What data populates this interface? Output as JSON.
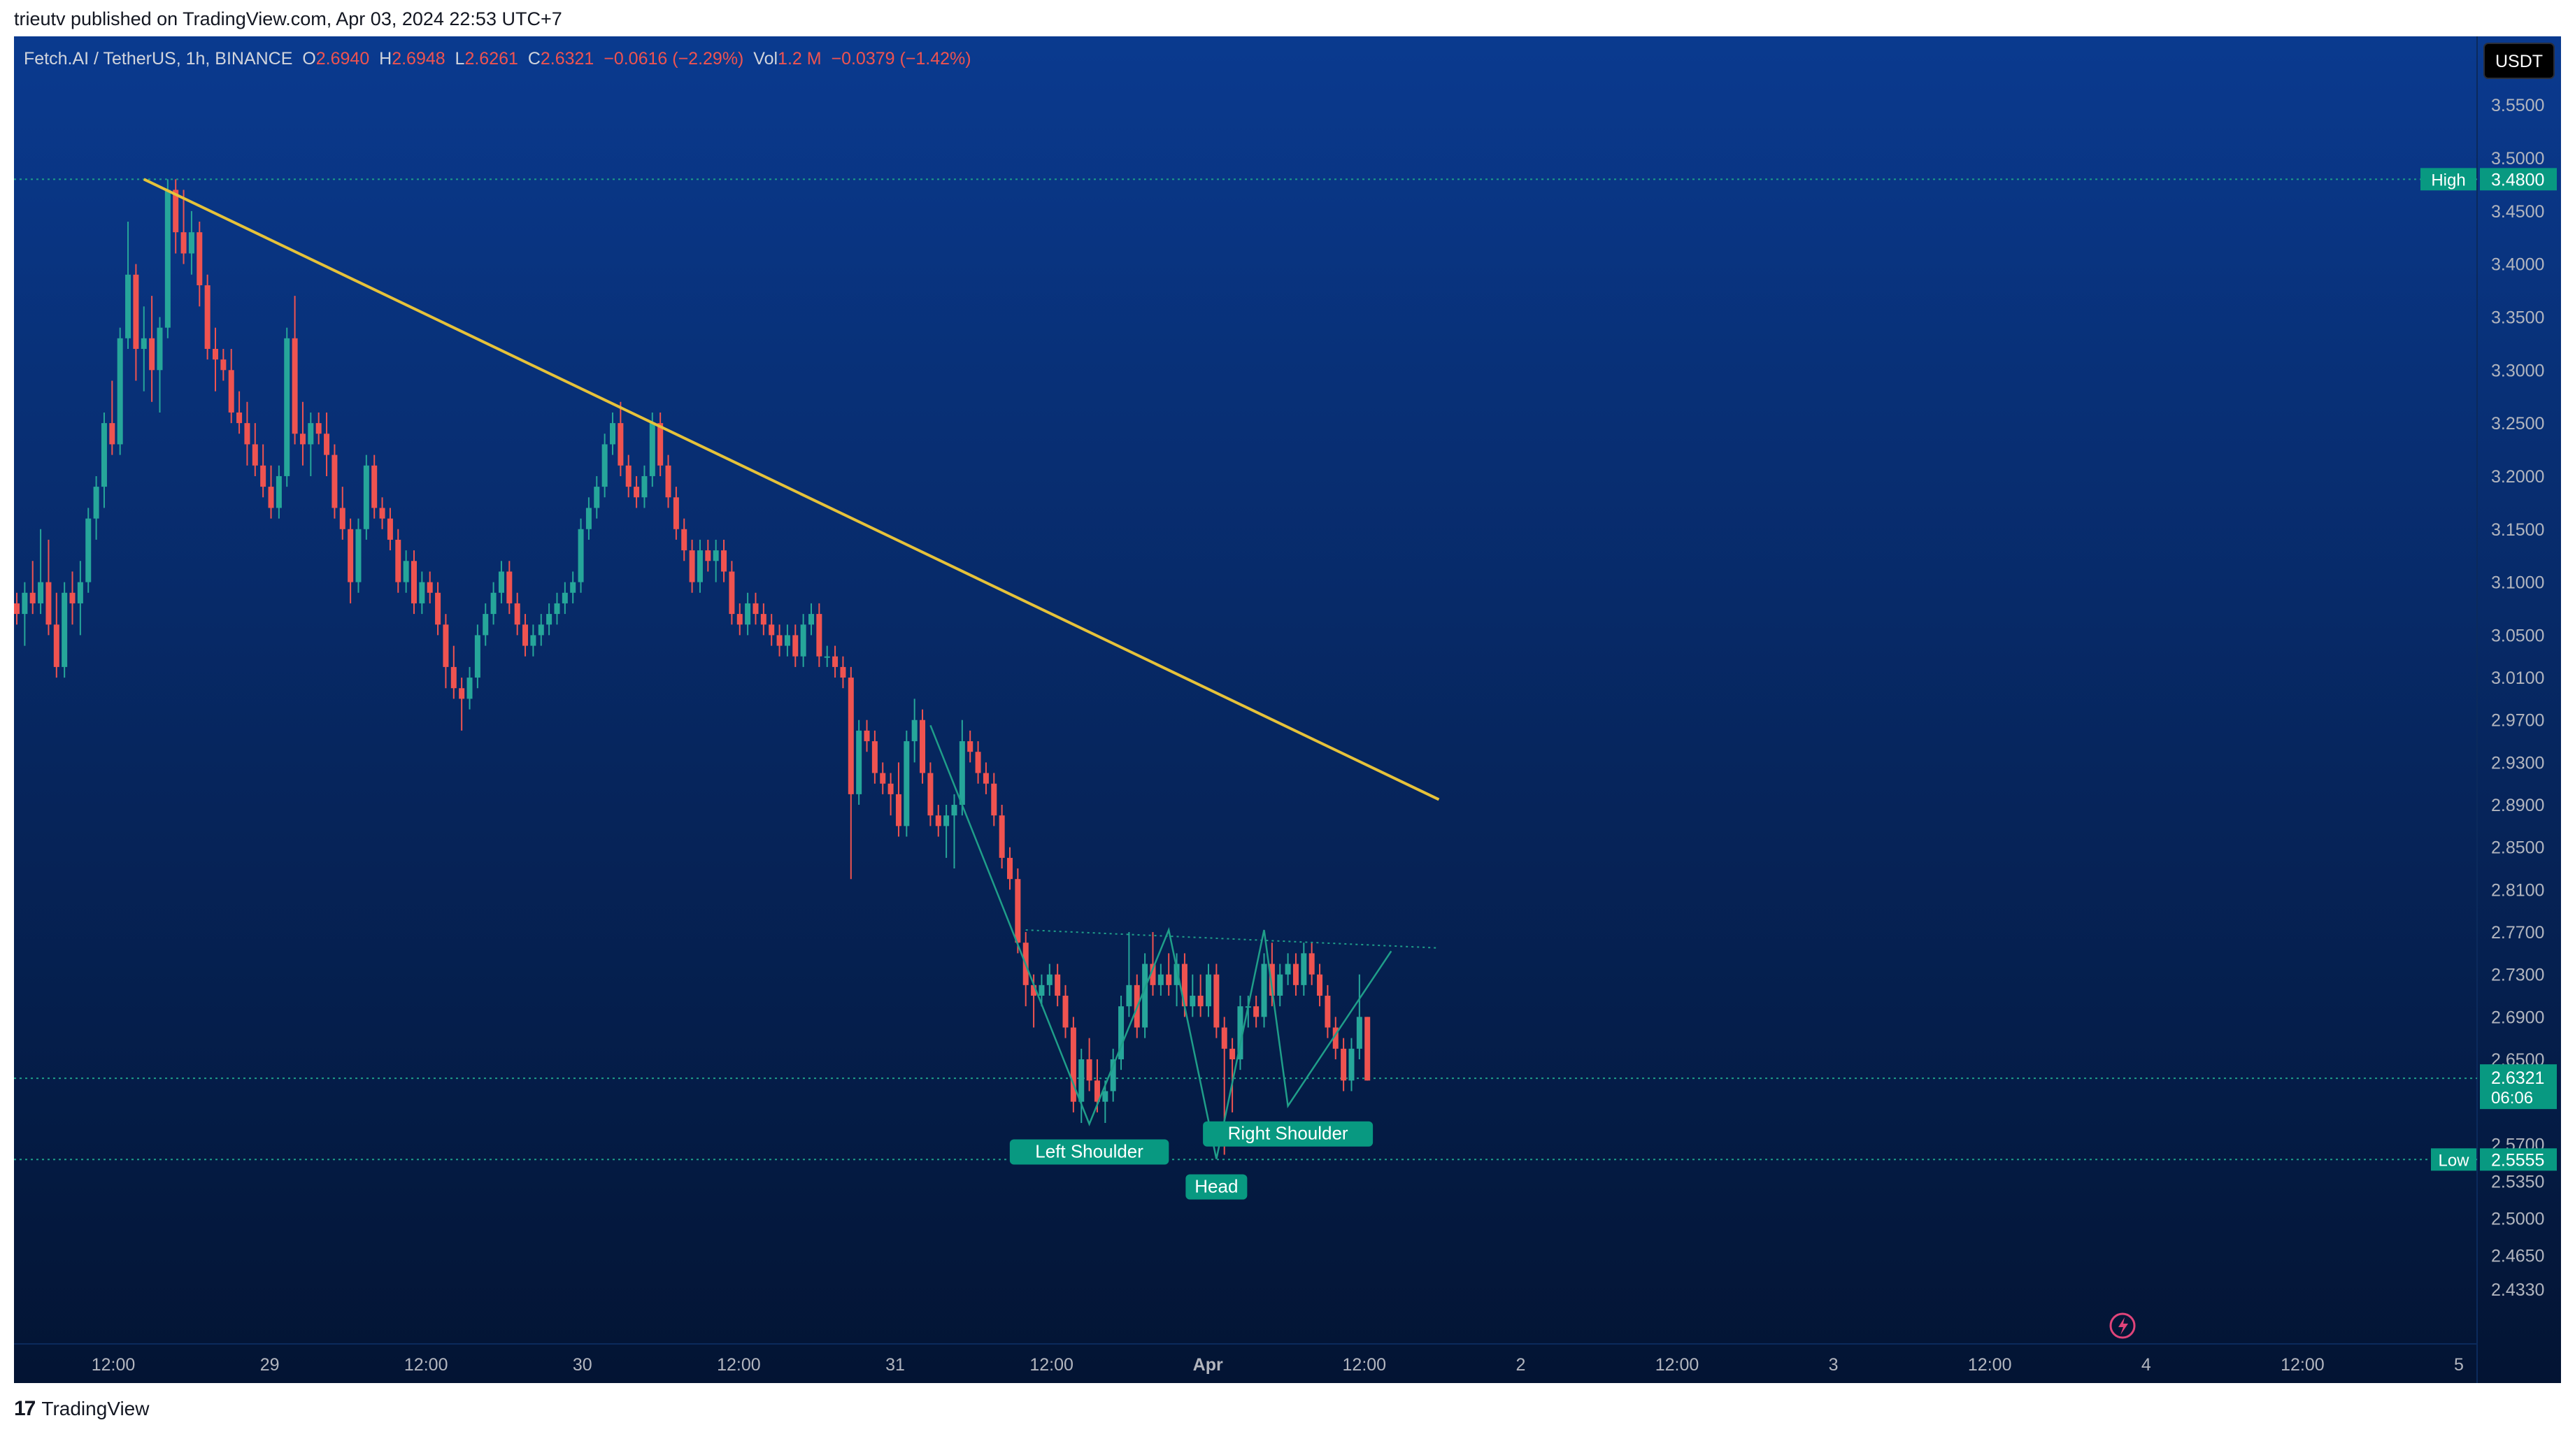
{
  "header": {
    "published_by": "trieutv published on TradingView.com, Apr 03, 2024 22:53 UTC+7"
  },
  "legend": {
    "symbol": "Fetch.AI / TetherUS, 1h, BINANCE",
    "open_label": "O",
    "open": "2.6940",
    "high_label": "H",
    "high": "2.6948",
    "low_label": "L",
    "low": "2.6261",
    "close_label": "C",
    "close": "2.6321",
    "change": "−0.0616 (−2.29%)",
    "vol_label": "Vol",
    "vol": "1.2 M",
    "vol_change": "−0.0379 (−1.42%)"
  },
  "price_axis": {
    "currency": "USDT",
    "ticks": [
      "3.5500",
      "3.5000",
      "3.4500",
      "3.4000",
      "3.3500",
      "3.3000",
      "3.2500",
      "3.2000",
      "3.1500",
      "3.1000",
      "3.0500",
      "3.0100",
      "2.9700",
      "2.9300",
      "2.8900",
      "2.8500",
      "2.8100",
      "2.7700",
      "2.7300",
      "2.6900",
      "2.6500",
      "2.5700",
      "2.5350",
      "2.5000",
      "2.4650",
      "2.4330"
    ],
    "high_label": "High",
    "high_value": "3.4800",
    "low_label": "Low",
    "low_value": "2.5555",
    "last_price": "2.6321",
    "countdown": "06:06"
  },
  "time_axis": {
    "ticks": [
      "12:00",
      "29",
      "12:00",
      "30",
      "12:00",
      "31",
      "12:00",
      "Apr",
      "12:00",
      "2",
      "12:00",
      "3",
      "12:00",
      "4",
      "12:00",
      "5"
    ]
  },
  "annotations": {
    "left_shoulder": "Left Shoulder",
    "head": "Head",
    "right_shoulder": "Right Shoulder"
  },
  "footer": {
    "brand": "TradingView"
  },
  "colors": {
    "bg_top": "#0a3a8f",
    "bg_bottom": "#031433",
    "up": "#26a69a",
    "down": "#ef5350",
    "trendline": "#e6c23a",
    "pattern": "#1f9e89",
    "label_bg": "#089981"
  },
  "chart_data": {
    "type": "candlestick",
    "timeframe": "1h",
    "ylim": [
      2.433,
      3.555
    ],
    "x_start": "2024-03-28 07:00",
    "candles": [
      [
        3.08,
        3.09,
        3.06,
        3.07
      ],
      [
        3.07,
        3.1,
        3.04,
        3.09
      ],
      [
        3.09,
        3.12,
        3.07,
        3.08
      ],
      [
        3.08,
        3.15,
        3.07,
        3.1
      ],
      [
        3.1,
        3.14,
        3.05,
        3.06
      ],
      [
        3.06,
        3.09,
        3.01,
        3.02
      ],
      [
        3.02,
        3.1,
        3.01,
        3.09
      ],
      [
        3.09,
        3.11,
        3.06,
        3.08
      ],
      [
        3.08,
        3.12,
        3.05,
        3.1
      ],
      [
        3.1,
        3.17,
        3.09,
        3.16
      ],
      [
        3.16,
        3.2,
        3.14,
        3.19
      ],
      [
        3.19,
        3.26,
        3.17,
        3.25
      ],
      [
        3.25,
        3.29,
        3.22,
        3.23
      ],
      [
        3.23,
        3.34,
        3.22,
        3.33
      ],
      [
        3.33,
        3.44,
        3.32,
        3.39
      ],
      [
        3.39,
        3.4,
        3.29,
        3.32
      ],
      [
        3.32,
        3.36,
        3.28,
        3.33
      ],
      [
        3.33,
        3.37,
        3.27,
        3.3
      ],
      [
        3.3,
        3.35,
        3.26,
        3.34
      ],
      [
        3.34,
        3.48,
        3.33,
        3.47
      ],
      [
        3.47,
        3.48,
        3.41,
        3.43
      ],
      [
        3.43,
        3.47,
        3.4,
        3.41
      ],
      [
        3.41,
        3.45,
        3.39,
        3.43
      ],
      [
        3.43,
        3.44,
        3.36,
        3.38
      ],
      [
        3.38,
        3.39,
        3.31,
        3.32
      ],
      [
        3.32,
        3.34,
        3.28,
        3.31
      ],
      [
        3.31,
        3.32,
        3.29,
        3.3
      ],
      [
        3.3,
        3.32,
        3.25,
        3.26
      ],
      [
        3.26,
        3.28,
        3.24,
        3.25
      ],
      [
        3.25,
        3.27,
        3.21,
        3.23
      ],
      [
        3.23,
        3.25,
        3.2,
        3.21
      ],
      [
        3.21,
        3.23,
        3.18,
        3.19
      ],
      [
        3.19,
        3.21,
        3.16,
        3.17
      ],
      [
        3.17,
        3.21,
        3.16,
        3.2
      ],
      [
        3.2,
        3.34,
        3.19,
        3.33
      ],
      [
        3.33,
        3.37,
        3.23,
        3.24
      ],
      [
        3.24,
        3.27,
        3.21,
        3.23
      ],
      [
        3.23,
        3.26,
        3.2,
        3.25
      ],
      [
        3.25,
        3.26,
        3.23,
        3.24
      ],
      [
        3.24,
        3.26,
        3.2,
        3.22
      ],
      [
        3.22,
        3.23,
        3.16,
        3.17
      ],
      [
        3.17,
        3.19,
        3.14,
        3.15
      ],
      [
        3.15,
        3.16,
        3.08,
        3.1
      ],
      [
        3.1,
        3.16,
        3.09,
        3.15
      ],
      [
        3.15,
        3.22,
        3.14,
        3.21
      ],
      [
        3.21,
        3.22,
        3.16,
        3.17
      ],
      [
        3.17,
        3.18,
        3.15,
        3.16
      ],
      [
        3.16,
        3.17,
        3.13,
        3.14
      ],
      [
        3.14,
        3.15,
        3.09,
        3.1
      ],
      [
        3.1,
        3.13,
        3.09,
        3.12
      ],
      [
        3.12,
        3.13,
        3.07,
        3.08
      ],
      [
        3.08,
        3.11,
        3.07,
        3.1
      ],
      [
        3.1,
        3.11,
        3.08,
        3.09
      ],
      [
        3.09,
        3.1,
        3.05,
        3.06
      ],
      [
        3.06,
        3.07,
        3.0,
        3.02
      ],
      [
        3.02,
        3.04,
        2.99,
        3.0
      ],
      [
        3.0,
        3.01,
        2.96,
        2.99
      ],
      [
        2.99,
        3.02,
        2.98,
        3.01
      ],
      [
        3.01,
        3.06,
        3.0,
        3.05
      ],
      [
        3.05,
        3.08,
        3.04,
        3.07
      ],
      [
        3.07,
        3.1,
        3.06,
        3.09
      ],
      [
        3.09,
        3.12,
        3.08,
        3.11
      ],
      [
        3.11,
        3.12,
        3.07,
        3.08
      ],
      [
        3.08,
        3.09,
        3.05,
        3.06
      ],
      [
        3.06,
        3.07,
        3.03,
        3.04
      ],
      [
        3.04,
        3.06,
        3.03,
        3.05
      ],
      [
        3.05,
        3.07,
        3.04,
        3.06
      ],
      [
        3.06,
        3.08,
        3.05,
        3.07
      ],
      [
        3.07,
        3.09,
        3.06,
        3.08
      ],
      [
        3.08,
        3.1,
        3.07,
        3.09
      ],
      [
        3.09,
        3.11,
        3.08,
        3.1
      ],
      [
        3.1,
        3.16,
        3.09,
        3.15
      ],
      [
        3.15,
        3.18,
        3.14,
        3.17
      ],
      [
        3.17,
        3.2,
        3.16,
        3.19
      ],
      [
        3.19,
        3.24,
        3.18,
        3.23
      ],
      [
        3.23,
        3.26,
        3.22,
        3.25
      ],
      [
        3.25,
        3.27,
        3.2,
        3.21
      ],
      [
        3.21,
        3.22,
        3.18,
        3.19
      ],
      [
        3.19,
        3.2,
        3.17,
        3.18
      ],
      [
        3.18,
        3.21,
        3.17,
        3.2
      ],
      [
        3.2,
        3.26,
        3.19,
        3.25
      ],
      [
        3.25,
        3.26,
        3.2,
        3.21
      ],
      [
        3.21,
        3.22,
        3.17,
        3.18
      ],
      [
        3.18,
        3.19,
        3.14,
        3.15
      ],
      [
        3.15,
        3.16,
        3.12,
        3.13
      ],
      [
        3.13,
        3.14,
        3.09,
        3.1
      ],
      [
        3.1,
        3.14,
        3.09,
        3.13
      ],
      [
        3.13,
        3.14,
        3.11,
        3.12
      ],
      [
        3.12,
        3.14,
        3.1,
        3.13
      ],
      [
        3.13,
        3.14,
        3.1,
        3.11
      ],
      [
        3.11,
        3.12,
        3.06,
        3.07
      ],
      [
        3.07,
        3.08,
        3.05,
        3.06
      ],
      [
        3.06,
        3.09,
        3.05,
        3.08
      ],
      [
        3.08,
        3.09,
        3.06,
        3.07
      ],
      [
        3.07,
        3.08,
        3.05,
        3.06
      ],
      [
        3.06,
        3.07,
        3.04,
        3.05
      ],
      [
        3.05,
        3.06,
        3.03,
        3.04
      ],
      [
        3.04,
        3.06,
        3.03,
        3.05
      ],
      [
        3.05,
        3.06,
        3.02,
        3.03
      ],
      [
        3.03,
        3.07,
        3.02,
        3.06
      ],
      [
        3.06,
        3.08,
        3.05,
        3.07
      ],
      [
        3.07,
        3.08,
        3.02,
        3.03
      ],
      [
        3.03,
        3.04,
        3.02,
        3.03
      ],
      [
        3.03,
        3.04,
        3.01,
        3.02
      ],
      [
        3.02,
        3.03,
        3.0,
        3.01
      ],
      [
        3.01,
        3.02,
        2.82,
        2.9
      ],
      [
        2.9,
        2.97,
        2.89,
        2.96
      ],
      [
        2.96,
        2.97,
        2.94,
        2.95
      ],
      [
        2.95,
        2.96,
        2.91,
        2.92
      ],
      [
        2.92,
        2.93,
        2.9,
        2.91
      ],
      [
        2.91,
        2.92,
        2.88,
        2.9
      ],
      [
        2.9,
        2.93,
        2.86,
        2.87
      ],
      [
        2.87,
        2.96,
        2.86,
        2.95
      ],
      [
        2.95,
        2.99,
        2.93,
        2.97
      ],
      [
        2.97,
        2.98,
        2.91,
        2.92
      ],
      [
        2.92,
        2.93,
        2.87,
        2.88
      ],
      [
        2.88,
        2.89,
        2.86,
        2.87
      ],
      [
        2.87,
        2.89,
        2.84,
        2.88
      ],
      [
        2.88,
        2.9,
        2.83,
        2.89
      ],
      [
        2.89,
        2.97,
        2.88,
        2.95
      ],
      [
        2.95,
        2.96,
        2.93,
        2.94
      ],
      [
        2.94,
        2.95,
        2.91,
        2.92
      ],
      [
        2.92,
        2.93,
        2.9,
        2.91
      ],
      [
        2.91,
        2.92,
        2.87,
        2.88
      ],
      [
        2.88,
        2.89,
        2.83,
        2.84
      ],
      [
        2.84,
        2.85,
        2.81,
        2.82
      ],
      [
        2.82,
        2.83,
        2.75,
        2.76
      ],
      [
        2.76,
        2.77,
        2.7,
        2.72
      ],
      [
        2.72,
        2.73,
        2.68,
        2.71
      ],
      [
        2.71,
        2.73,
        2.7,
        2.72
      ],
      [
        2.72,
        2.74,
        2.71,
        2.73
      ],
      [
        2.73,
        2.74,
        2.7,
        2.71
      ],
      [
        2.71,
        2.72,
        2.67,
        2.68
      ],
      [
        2.68,
        2.69,
        2.6,
        2.61
      ],
      [
        2.61,
        2.66,
        2.59,
        2.65
      ],
      [
        2.65,
        2.67,
        2.62,
        2.63
      ],
      [
        2.63,
        2.65,
        2.6,
        2.61
      ],
      [
        2.61,
        2.63,
        2.59,
        2.62
      ],
      [
        2.62,
        2.66,
        2.61,
        2.65
      ],
      [
        2.65,
        2.71,
        2.64,
        2.7
      ],
      [
        2.7,
        2.77,
        2.69,
        2.72
      ],
      [
        2.72,
        2.73,
        2.67,
        2.68
      ],
      [
        2.68,
        2.75,
        2.67,
        2.74
      ],
      [
        2.74,
        2.77,
        2.71,
        2.72
      ],
      [
        2.72,
        2.74,
        2.71,
        2.73
      ],
      [
        2.73,
        2.75,
        2.71,
        2.72
      ],
      [
        2.72,
        2.75,
        2.7,
        2.74
      ],
      [
        2.74,
        2.75,
        2.69,
        2.7
      ],
      [
        2.7,
        2.73,
        2.69,
        2.71
      ],
      [
        2.71,
        2.73,
        2.69,
        2.7
      ],
      [
        2.7,
        2.74,
        2.69,
        2.73
      ],
      [
        2.73,
        2.74,
        2.67,
        2.68
      ],
      [
        2.68,
        2.69,
        2.56,
        2.66
      ],
      [
        2.66,
        2.67,
        2.6,
        2.65
      ],
      [
        2.65,
        2.71,
        2.64,
        2.7
      ],
      [
        2.7,
        2.71,
        2.68,
        2.7
      ],
      [
        2.7,
        2.71,
        2.68,
        2.69
      ],
      [
        2.69,
        2.75,
        2.68,
        2.74
      ],
      [
        2.74,
        2.76,
        2.7,
        2.71
      ],
      [
        2.71,
        2.74,
        2.7,
        2.73
      ],
      [
        2.73,
        2.75,
        2.72,
        2.74
      ],
      [
        2.74,
        2.75,
        2.71,
        2.72
      ],
      [
        2.72,
        2.76,
        2.71,
        2.75
      ],
      [
        2.75,
        2.76,
        2.72,
        2.73
      ],
      [
        2.73,
        2.74,
        2.7,
        2.71
      ],
      [
        2.71,
        2.72,
        2.67,
        2.68
      ],
      [
        2.68,
        2.69,
        2.65,
        2.66
      ],
      [
        2.66,
        2.67,
        2.62,
        2.63
      ],
      [
        2.63,
        2.67,
        2.62,
        2.66
      ],
      [
        2.66,
        2.73,
        2.65,
        2.69
      ],
      [
        2.69,
        2.69,
        2.63,
        2.63
      ]
    ],
    "trendline": [
      [
        "2024-03-28 23:00",
        3.48
      ],
      [
        "2024-04-04 18:00",
        2.895
      ]
    ],
    "neckline": [
      [
        "2024-04-02 14:00",
        2.772
      ],
      [
        "2024-04-04 18:00",
        2.755
      ]
    ],
    "hs_path": [
      [
        "2024-04-02 02:00",
        2.965
      ],
      [
        "2024-04-02 22:00",
        2.589
      ],
      [
        "2024-04-03 08:00",
        2.772
      ],
      [
        "2024-04-03 14:00",
        2.556
      ],
      [
        "2024-04-03 20:00",
        2.772
      ],
      [
        "2024-04-03 23:00",
        2.606
      ],
      [
        "2024-04-04 12:00",
        2.752
      ]
    ],
    "high_line": 3.48,
    "low_line": 2.5555,
    "last_price_line": 2.6321
  }
}
